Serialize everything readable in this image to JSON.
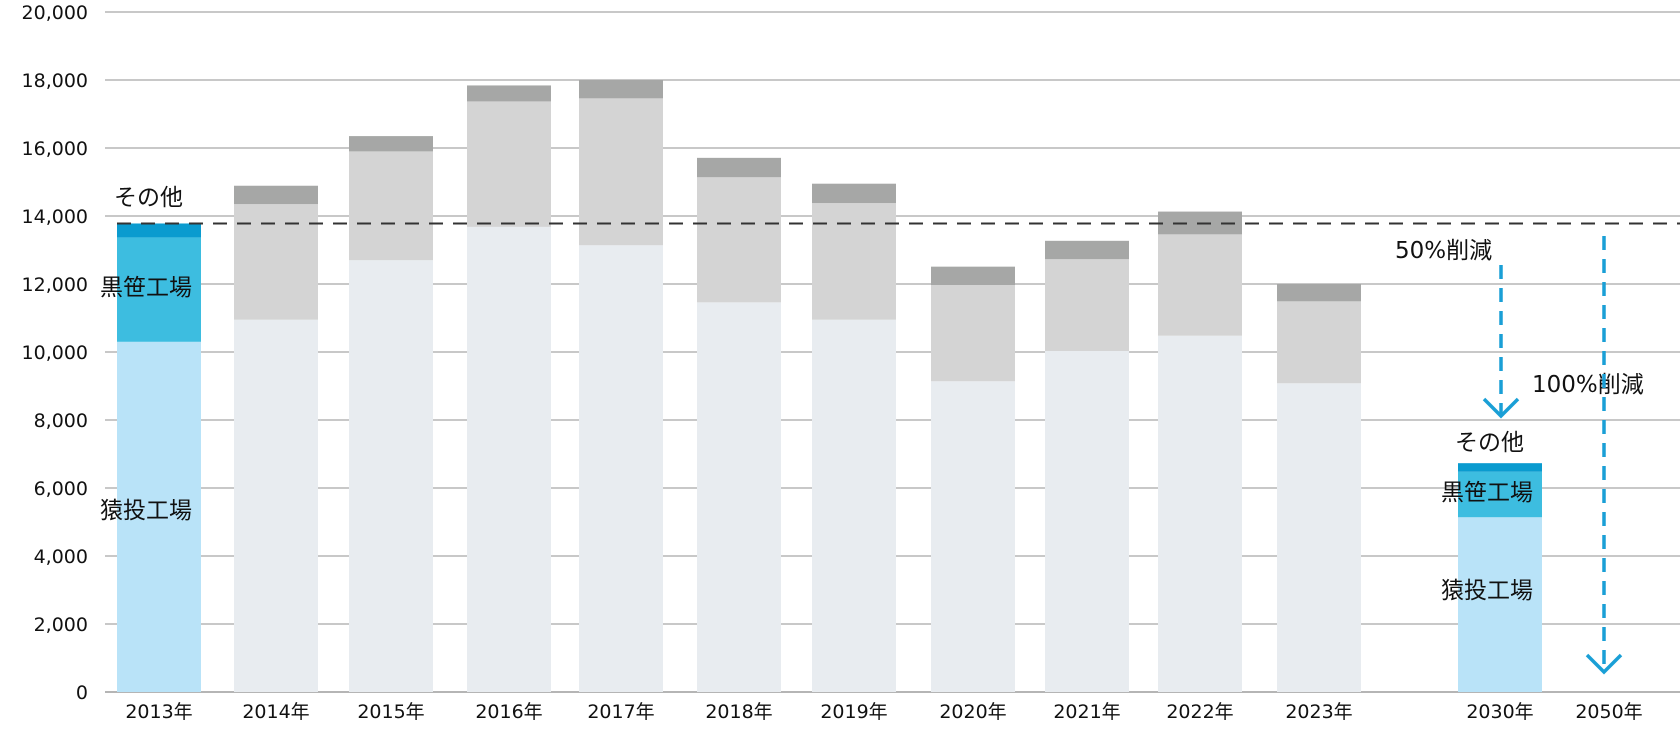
{
  "chart_data": {
    "type": "bar",
    "stacked": true,
    "categories": [
      "2013年",
      "2014年",
      "2015年",
      "2016年",
      "2017年",
      "2018年",
      "2019年",
      "2020年",
      "2021年",
      "2022年",
      "2023年",
      "2030年",
      "2050年"
    ],
    "series": [
      {
        "name": "猿投工場",
        "values": [
          10300,
          10950,
          12700,
          13680,
          13140,
          11460,
          10950,
          9140,
          10030,
          10480,
          9080,
          5140,
          0
        ]
      },
      {
        "name": "黒笹工場",
        "values": [
          3070,
          3400,
          3200,
          3690,
          4320,
          3680,
          3430,
          2830,
          2700,
          2980,
          2410,
          1340,
          0
        ]
      },
      {
        "name": "その他",
        "values": [
          410,
          540,
          450,
          470,
          540,
          570,
          570,
          540,
          540,
          670,
          510,
          250,
          0
        ]
      }
    ],
    "ylim": [
      0,
      20000
    ],
    "yticks": [
      "0",
      "2,000",
      "4,000",
      "6,000",
      "8,000",
      "10,000",
      "12,000",
      "14,000",
      "16,000",
      "18,000",
      "20,000"
    ],
    "grid": true,
    "baseline_value": 13780,
    "colors": {
      "highlight": [
        "#b9e3f8",
        "#3dbde0",
        "#0a9bcf"
      ],
      "muted": [
        "#e8ecf0",
        "#d4d4d4",
        "#a6a7a6"
      ],
      "arrow": "#1a9fd6",
      "grid": "#b5b5b5"
    },
    "highlight_categories": [
      "2013年",
      "2030年"
    ],
    "annotations": {
      "target_2030": "50%削減",
      "target_2050": "100%削減"
    },
    "labels_2013": {
      "other": "その他",
      "kurozasa": "黒笹工場",
      "sanage": "猿投工場"
    },
    "labels_2030": {
      "other": "その他",
      "kurozasa": "黒笹工場",
      "sanage": "猿投工場"
    }
  }
}
